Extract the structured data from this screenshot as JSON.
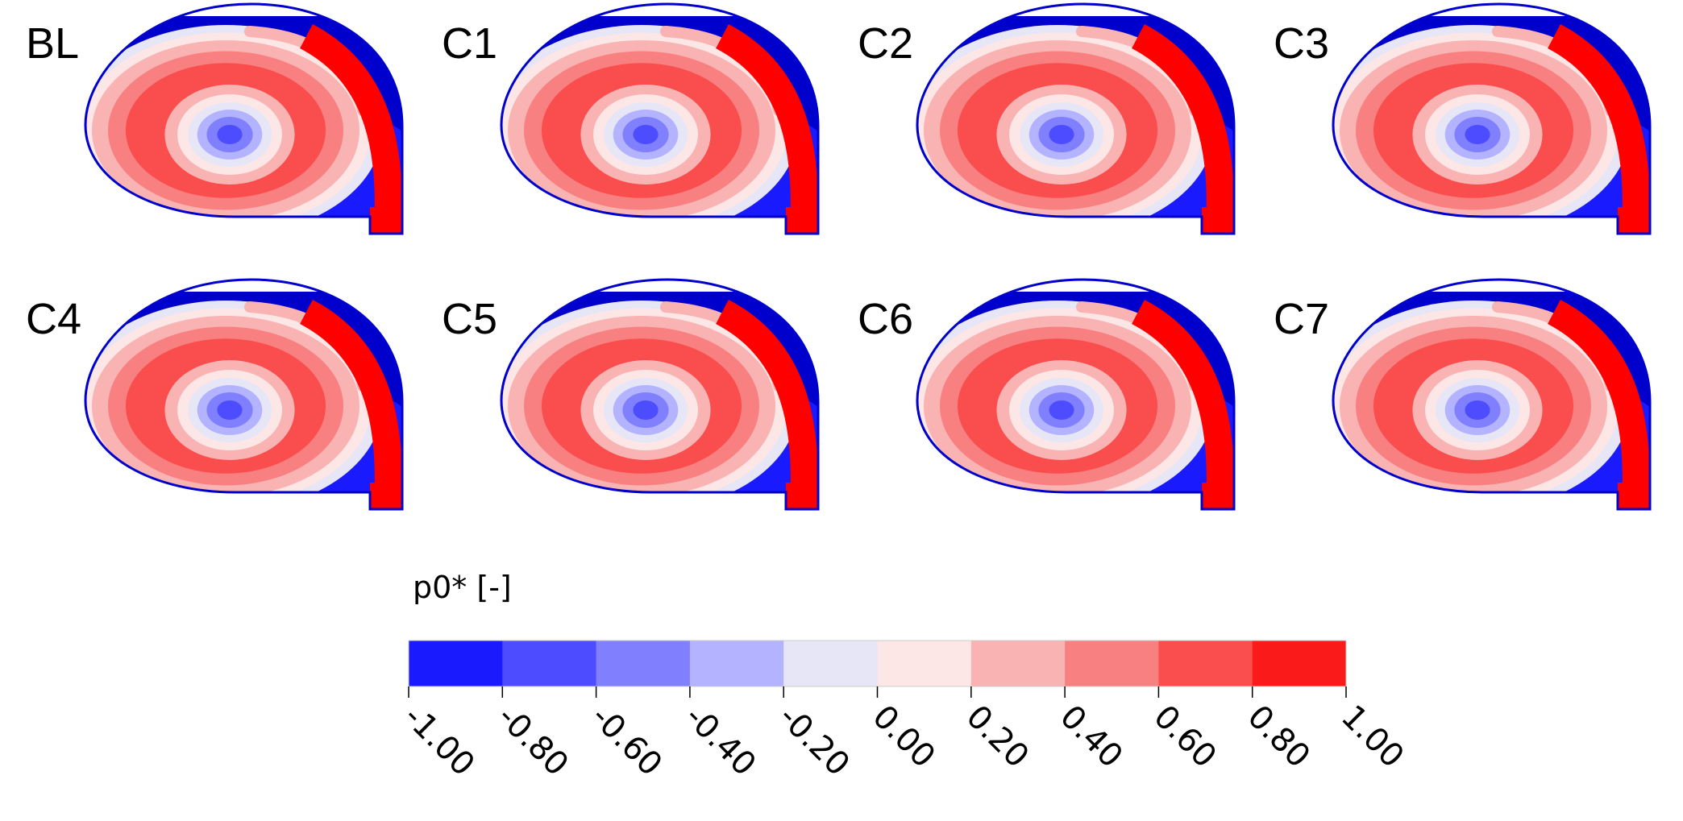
{
  "panels": [
    {
      "label": "BL"
    },
    {
      "label": "C1"
    },
    {
      "label": "C2"
    },
    {
      "label": "C3"
    },
    {
      "label": "C4"
    },
    {
      "label": "C5"
    },
    {
      "label": "C6"
    },
    {
      "label": "C7"
    }
  ],
  "colorbar": {
    "title": "p0* [-]",
    "ticks": [
      "-1.00",
      "-0.80",
      "-0.60",
      "-0.40",
      "-0.20",
      "0.00",
      "0.20",
      "0.40",
      "0.60",
      "0.80",
      "1.00"
    ],
    "colors": [
      "#1a1aff",
      "#4d4dff",
      "#8080ff",
      "#b3b3ff",
      "#e6e6f7",
      "#fce6e6",
      "#f9b3b3",
      "#f98080",
      "#fa4d4d",
      "#fb1a1a"
    ]
  },
  "field_colors": {
    "outer_blue": "#0000cc",
    "wall_blue": "#1a1aff",
    "core_blue": "#4d4dff",
    "red_jet": "#ff0000"
  }
}
